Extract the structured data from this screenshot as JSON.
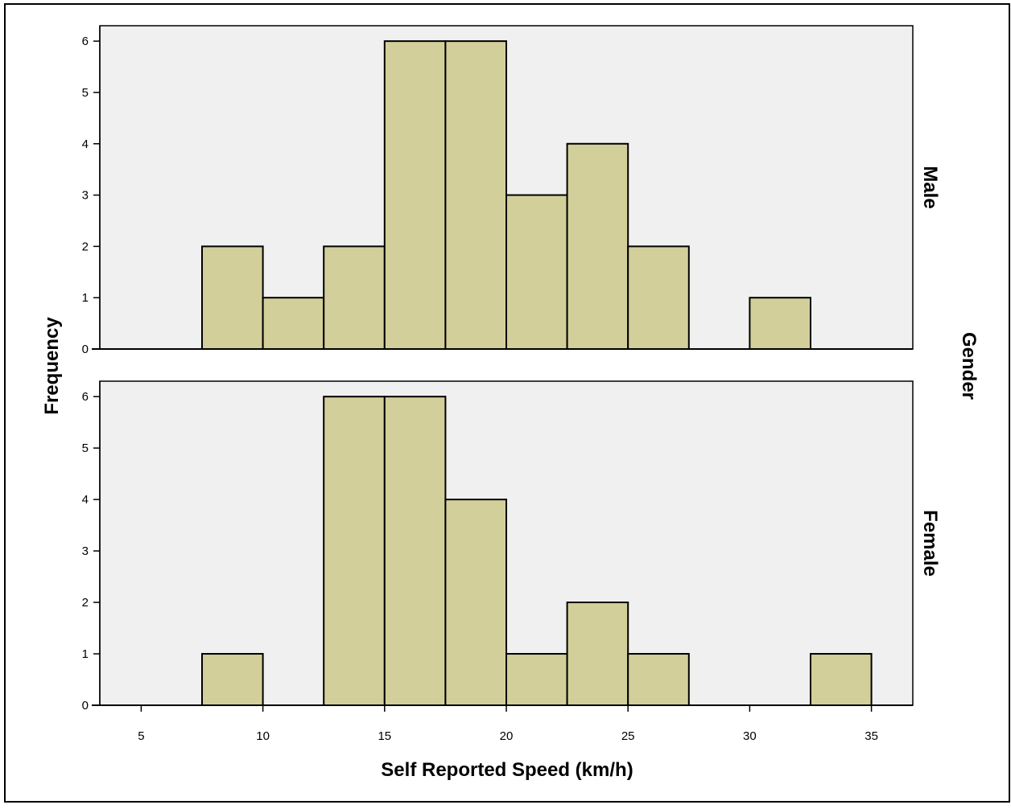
{
  "chart_data": {
    "type": "bar",
    "subtype": "histogram-faceted",
    "xlabel": "Self Reported Speed (km/h)",
    "ylabel": "Frequency",
    "facet_label": "Gender",
    "bin_width": 2.5,
    "xlim": [
      3.3,
      36.7
    ],
    "ylim": [
      0,
      6.3
    ],
    "x_ticks": [
      5,
      10,
      15,
      20,
      25,
      30,
      35
    ],
    "y_ticks": [
      0,
      1,
      2,
      3,
      4,
      5,
      6
    ],
    "grid": false,
    "colors": {
      "bar_fill": "#d3cf9a",
      "bar_stroke": "#000000",
      "panel_bg": "#f0f0f0"
    },
    "panels": [
      {
        "name": "Male",
        "bins": [
          {
            "x0": 7.5,
            "x1": 10,
            "count": 2
          },
          {
            "x0": 10,
            "x1": 12.5,
            "count": 1
          },
          {
            "x0": 12.5,
            "x1": 15,
            "count": 2
          },
          {
            "x0": 15,
            "x1": 17.5,
            "count": 6
          },
          {
            "x0": 17.5,
            "x1": 20,
            "count": 6
          },
          {
            "x0": 20,
            "x1": 22.5,
            "count": 3
          },
          {
            "x0": 22.5,
            "x1": 25,
            "count": 4
          },
          {
            "x0": 25,
            "x1": 27.5,
            "count": 2
          },
          {
            "x0": 30,
            "x1": 32.5,
            "count": 1
          }
        ]
      },
      {
        "name": "Female",
        "bins": [
          {
            "x0": 7.5,
            "x1": 10,
            "count": 1
          },
          {
            "x0": 12.5,
            "x1": 15,
            "count": 6
          },
          {
            "x0": 15,
            "x1": 17.5,
            "count": 6
          },
          {
            "x0": 17.5,
            "x1": 20,
            "count": 4
          },
          {
            "x0": 20,
            "x1": 22.5,
            "count": 1
          },
          {
            "x0": 22.5,
            "x1": 25,
            "count": 2
          },
          {
            "x0": 25,
            "x1": 27.5,
            "count": 1
          },
          {
            "x0": 32.5,
            "x1": 35,
            "count": 1
          }
        ]
      }
    ]
  }
}
